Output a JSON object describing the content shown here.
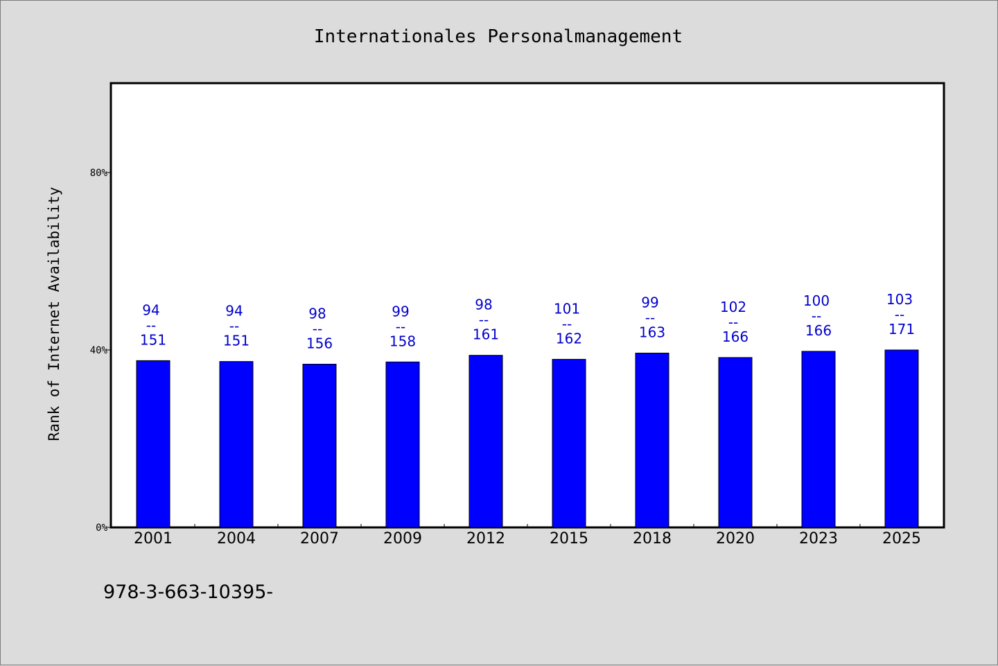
{
  "chart_data": {
    "type": "bar",
    "title": "Internationales Personalmanagement",
    "xlabel": "",
    "ylabel": "Rank of Internet Availability",
    "ylim": [
      0,
      100
    ],
    "yticks": [
      0,
      40,
      80
    ],
    "ytick_labels": [
      "0%",
      "40%",
      "80%"
    ],
    "grid": false,
    "categories": [
      "2001",
      "2004",
      "2007",
      "2009",
      "2012",
      "2015",
      "2018",
      "2020",
      "2023",
      "2025"
    ],
    "series": [
      {
        "values": [
          37.6,
          37.4,
          36.8,
          37.3,
          38.8,
          37.9,
          39.3,
          38.3,
          39.7,
          40.0
        ],
        "color": "#0000ff"
      }
    ],
    "data_labels": [
      {
        "top": "94",
        "sep": "--",
        "bottom": "151"
      },
      {
        "top": "94",
        "sep": "--",
        "bottom": "151"
      },
      {
        "top": "98",
        "sep": "--",
        "bottom": "156"
      },
      {
        "top": "99",
        "sep": "--",
        "bottom": "158"
      },
      {
        "top": "98",
        "sep": "--",
        "bottom": "161"
      },
      {
        "top": "101",
        "sep": "--",
        "bottom": "162"
      },
      {
        "top": "99",
        "sep": "--",
        "bottom": "163"
      },
      {
        "top": "102",
        "sep": "--",
        "bottom": "166"
      },
      {
        "top": "100",
        "sep": "--",
        "bottom": "166"
      },
      {
        "top": "103",
        "sep": "--",
        "bottom": "171"
      }
    ],
    "footnote": "978-3-663-10395-"
  },
  "colors": {
    "background": "#dcdcdc",
    "plot_background": "#ffffff",
    "bar": "#0000ff",
    "label": "#0000cc"
  }
}
